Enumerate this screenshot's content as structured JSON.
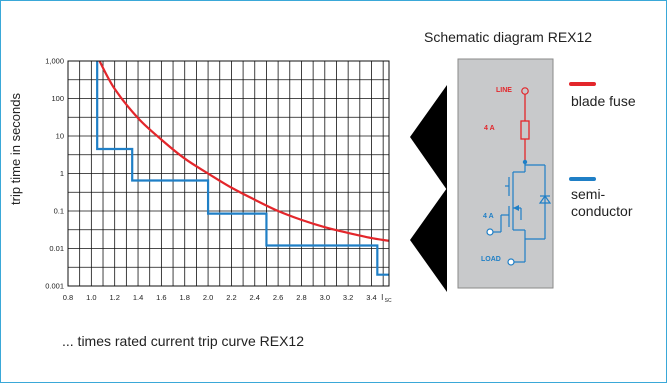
{
  "chart_data": {
    "type": "line",
    "xlabel": "... times rated current trip curve REX12",
    "ylabel": "trip time in seconds",
    "x_ticks": [
      "0.8",
      "1.0",
      "1.2",
      "1.4",
      "1.6",
      "1.8",
      "2.0",
      "2.2",
      "2.4",
      "2.6",
      "2.8",
      "3.0",
      "3.2",
      "3.4"
    ],
    "x_axis_end_label_main": "I",
    "x_axis_end_label_sub": "SC",
    "y_ticks": [
      "1,000",
      "100",
      "10",
      "1",
      "0.1",
      "0.01",
      "0.001"
    ],
    "y_tick_values": [
      1000,
      100,
      10,
      1,
      0.1,
      0.01,
      0.001
    ],
    "xlim": [
      0.8,
      3.55
    ],
    "ylim": [
      0.001,
      1000
    ],
    "yscale": "log",
    "grid": true,
    "series": [
      {
        "name": "blade fuse",
        "color": "#e3262b",
        "x": [
          1.07,
          1.2,
          1.4,
          1.6,
          1.8,
          2.0,
          2.2,
          2.4,
          2.6,
          2.8,
          3.0,
          3.2,
          3.4,
          3.55
        ],
        "y": [
          1000,
          180,
          30,
          8,
          2.5,
          1.0,
          0.42,
          0.2,
          0.1,
          0.058,
          0.037,
          0.026,
          0.019,
          0.016
        ]
      },
      {
        "name": "semiconductor",
        "color": "#1f7fc6",
        "x": [
          1.05,
          1.05,
          1.35,
          1.35,
          2.0,
          2.0,
          2.5,
          2.5,
          3.45,
          3.45,
          3.55
        ],
        "y": [
          1000,
          4.5,
          4.5,
          0.65,
          0.65,
          0.085,
          0.085,
          0.012,
          0.012,
          0.002,
          0.002
        ]
      }
    ]
  },
  "schematic": {
    "title": "Schematic diagram REX12",
    "line_label": "LINE",
    "load_label": "LOAD",
    "fuse_rating": "4 A",
    "semi_rating": "4 A"
  },
  "legend": {
    "fuse": {
      "label": "blade fuse",
      "color": "#e3262b"
    },
    "semi": {
      "label_line1": "semi-",
      "label_line2": "conductor",
      "color": "#1f7fc6"
    }
  },
  "colors": {
    "frame": "#3aa8d8",
    "panel": "#c8c9cb",
    "panel_border": "#8a8a8a"
  }
}
